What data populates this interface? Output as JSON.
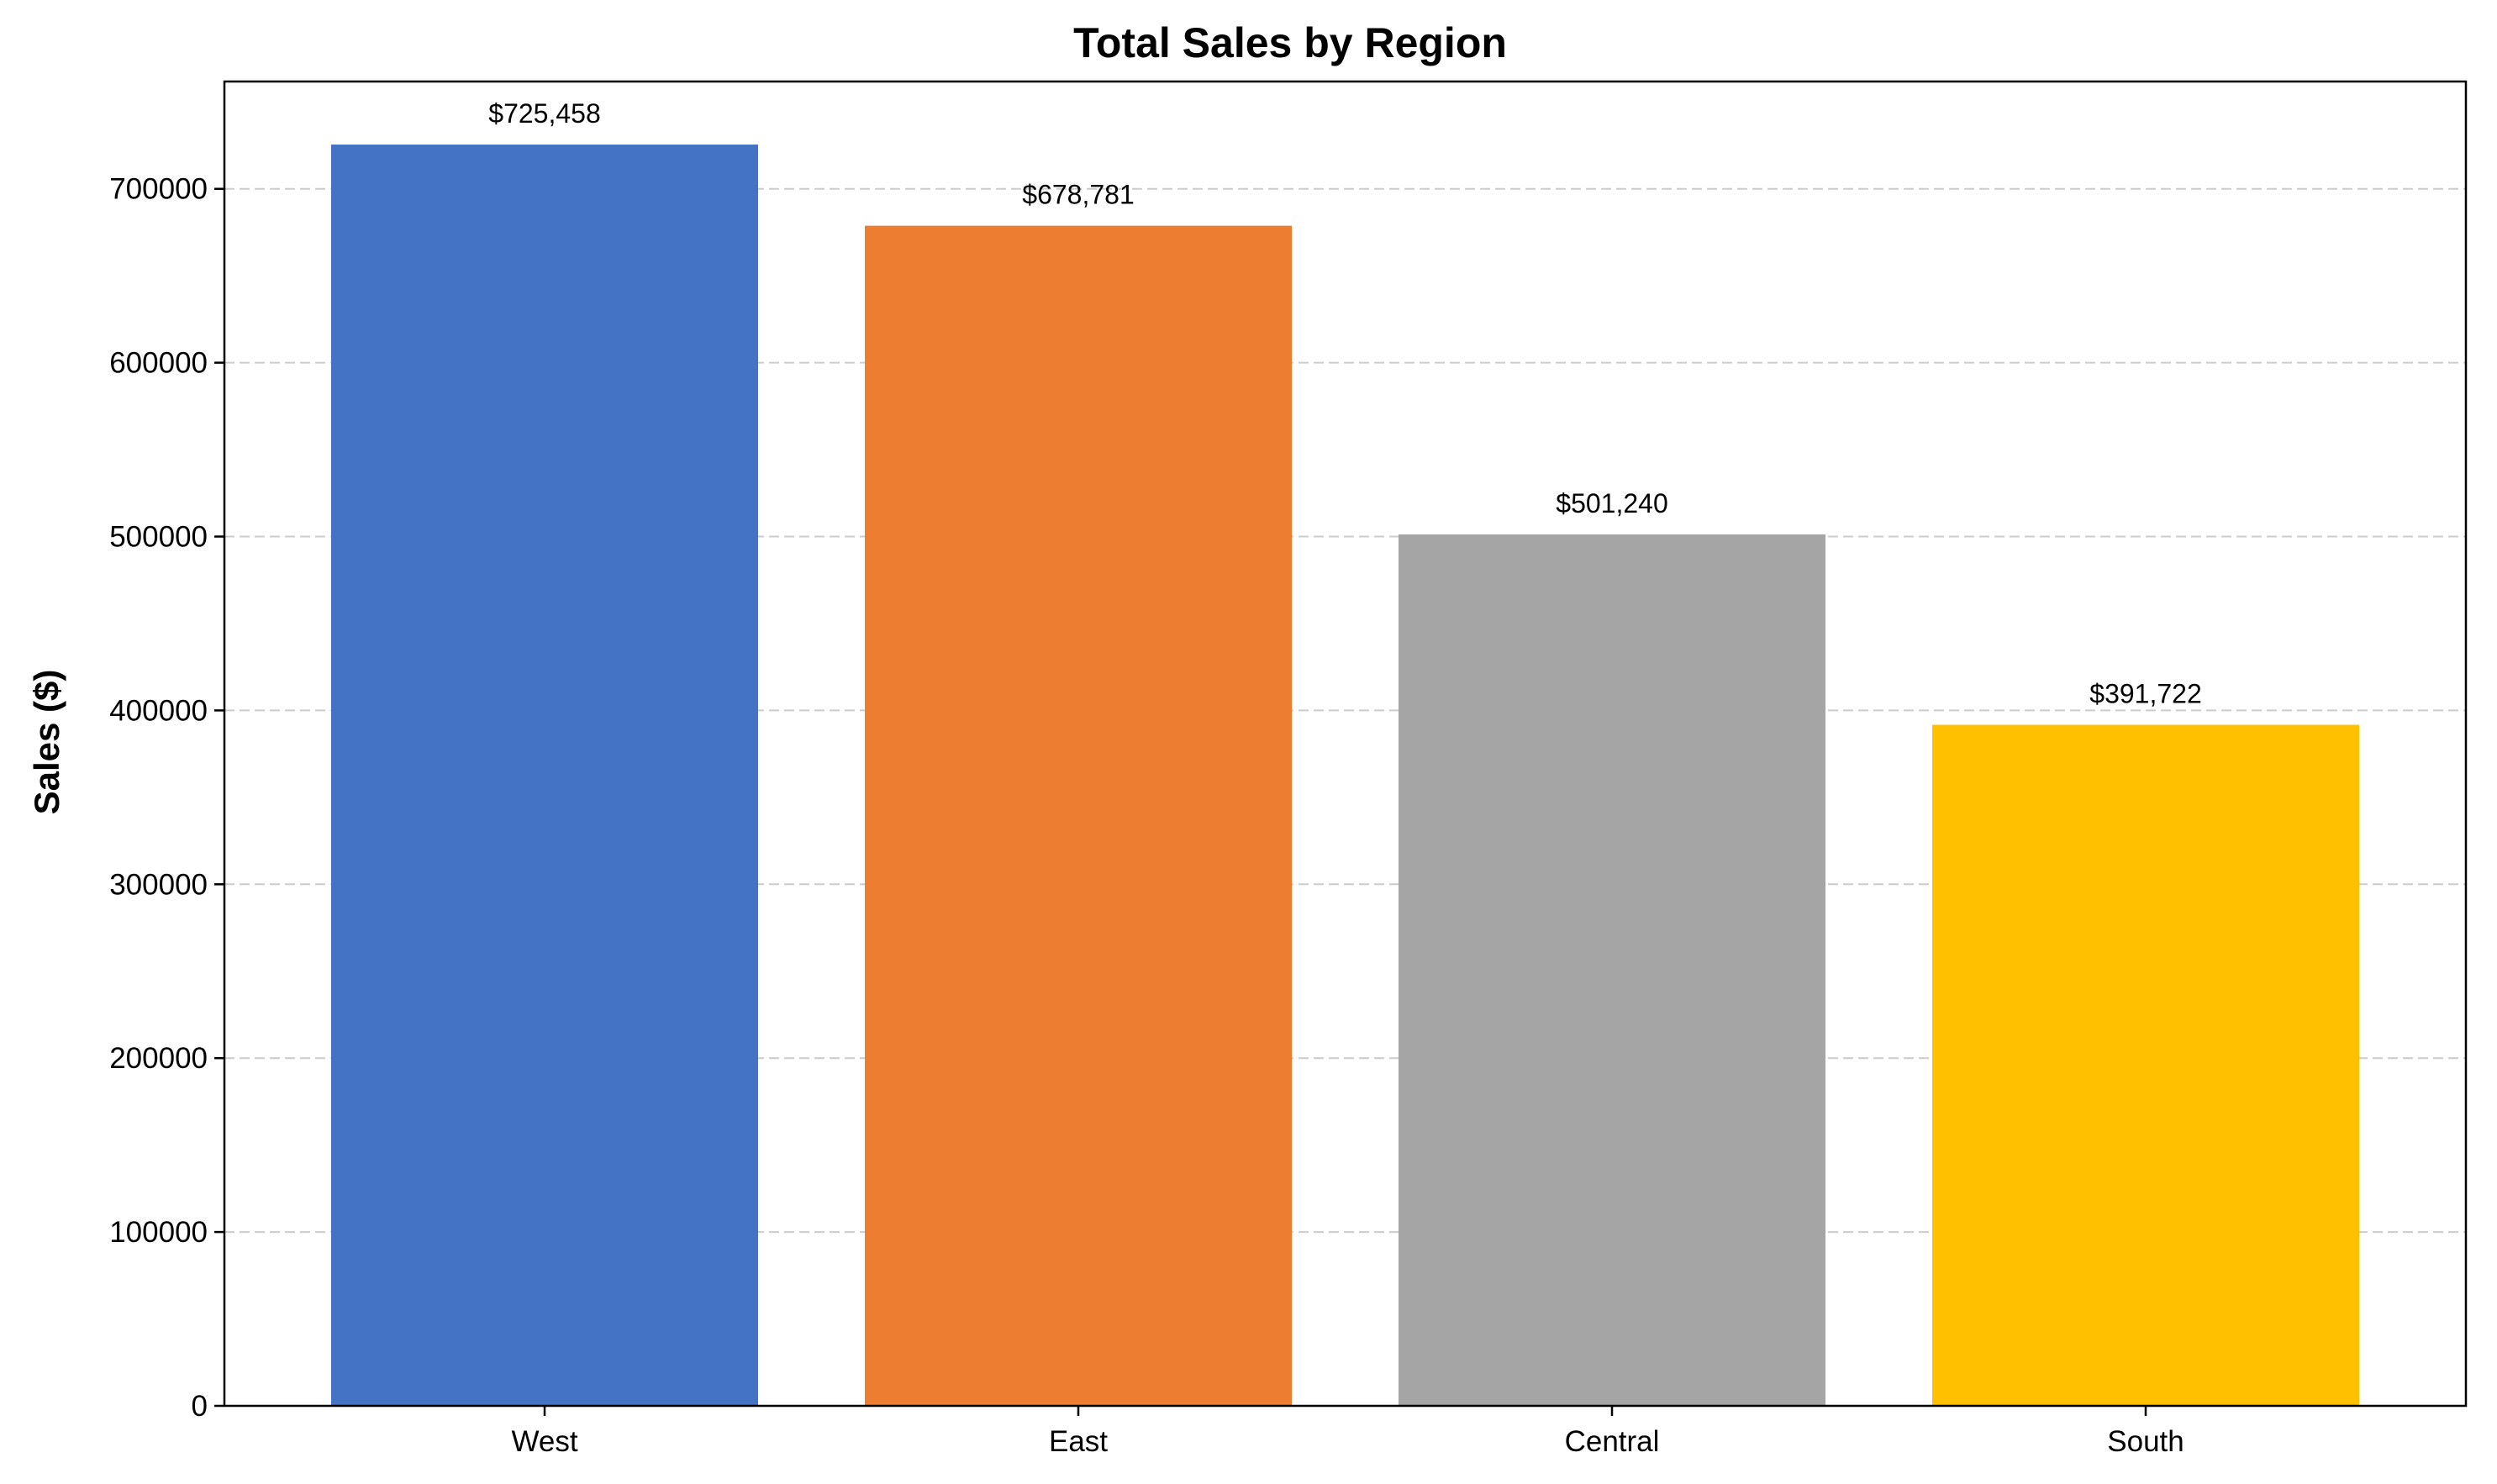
{
  "chart_data": {
    "type": "bar",
    "title": "Total Sales by Region",
    "xlabel": "",
    "ylabel": "Sales ($)",
    "categories": [
      "West",
      "East",
      "Central",
      "South"
    ],
    "values": [
      725458,
      678781,
      501240,
      391722
    ],
    "data_labels": [
      "$725,458",
      "$678,781",
      "$501,240",
      "$391,722"
    ],
    "colors": [
      "#4472C4",
      "#ED7D31",
      "#A5A5A5",
      "#FFC000"
    ],
    "ylim": [
      0,
      761731
    ],
    "yticks": [
      0,
      100000,
      200000,
      300000,
      400000,
      500000,
      600000,
      700000
    ],
    "ytick_labels": [
      "0",
      "100000",
      "200000",
      "300000",
      "400000",
      "500000",
      "600000",
      "700000"
    ],
    "grid": {
      "axis": "y",
      "style": "dashed",
      "color": "#cccccc"
    }
  }
}
